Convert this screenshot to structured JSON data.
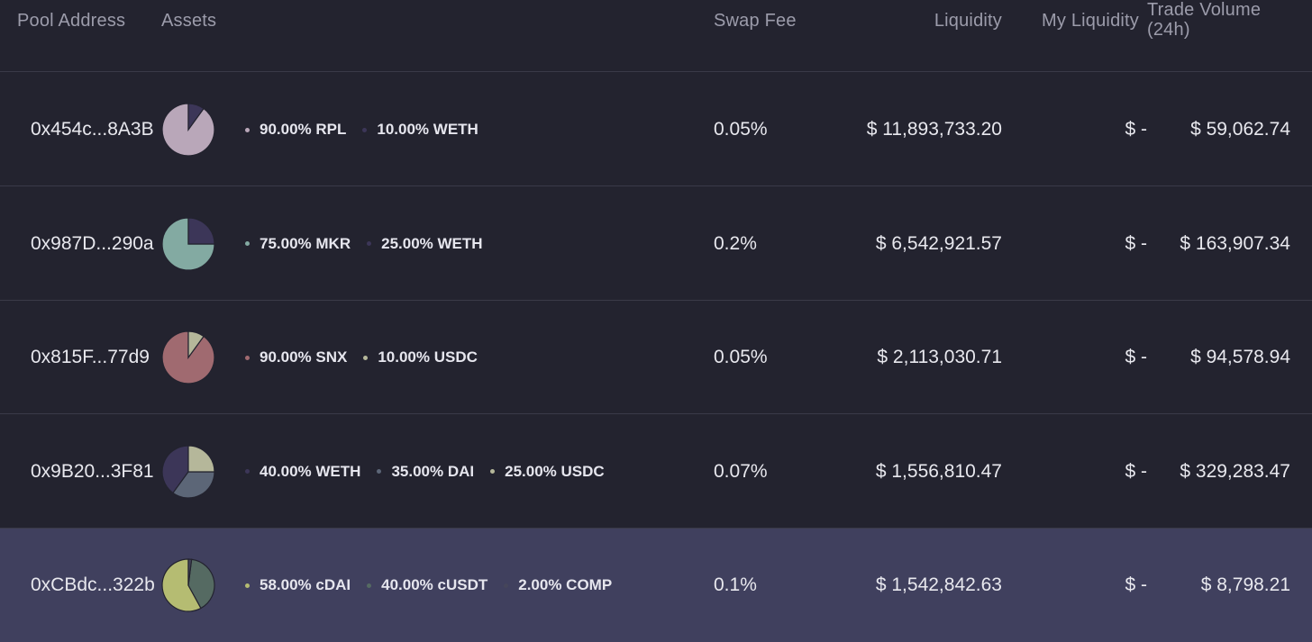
{
  "header": {
    "pool_address": "Pool Address",
    "assets": "Assets",
    "swap_fee": "Swap Fee",
    "liquidity": "Liquidity",
    "my_liquidity": "My Liquidity",
    "trade_volume_line1": "Trade Volume",
    "trade_volume_line2": "(24h)"
  },
  "rows": [
    {
      "address": "0x454c...8A3B",
      "assets": [
        {
          "label": "90.00% RPL",
          "weight": 90,
          "color": "#b9a7b9"
        },
        {
          "label": "10.00% WETH",
          "weight": 10,
          "color": "#3c3658"
        }
      ],
      "swap_fee": "0.05%",
      "liquidity": "$ 11,893,733.20",
      "my_liquidity": "$ -",
      "trade_volume": "$ 59,062.74"
    },
    {
      "address": "0x987D...290a",
      "assets": [
        {
          "label": "75.00% MKR",
          "weight": 75,
          "color": "#83aaa2"
        },
        {
          "label": "25.00% WETH",
          "weight": 25,
          "color": "#3c3658"
        }
      ],
      "swap_fee": "0.2%",
      "liquidity": "$ 6,542,921.57",
      "my_liquidity": "$ -",
      "trade_volume": "$ 163,907.34"
    },
    {
      "address": "0x815F...77d9",
      "assets": [
        {
          "label": "90.00% SNX",
          "weight": 90,
          "color": "#a06a70"
        },
        {
          "label": "10.00% USDC",
          "weight": 10,
          "color": "#b5b79a"
        }
      ],
      "swap_fee": "0.05%",
      "liquidity": "$ 2,113,030.71",
      "my_liquidity": "$ -",
      "trade_volume": "$ 94,578.94"
    },
    {
      "address": "0x9B20...3F81",
      "assets": [
        {
          "label": "40.00% WETH",
          "weight": 40,
          "color": "#3c3658"
        },
        {
          "label": "35.00% DAI",
          "weight": 35,
          "color": "#5c6677"
        },
        {
          "label": "25.00% USDC",
          "weight": 25,
          "color": "#b5b79a"
        }
      ],
      "swap_fee": "0.07%",
      "liquidity": "$ 1,556,810.47",
      "my_liquidity": "$ -",
      "trade_volume": "$ 329,283.47"
    },
    {
      "address": "0xCBdc...322b",
      "assets": [
        {
          "label": "58.00% cDAI",
          "weight": 58,
          "color": "#b5bc72"
        },
        {
          "label": "40.00% cUSDT",
          "weight": 40,
          "color": "#556a62"
        },
        {
          "label": "2.00% COMP",
          "weight": 2,
          "color": "#45455a"
        }
      ],
      "swap_fee": "0.1%",
      "liquidity": "$ 1,542,842.63",
      "my_liquidity": "$ -",
      "trade_volume": "$ 8,798.21",
      "selected": true
    }
  ]
}
